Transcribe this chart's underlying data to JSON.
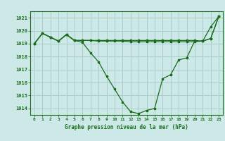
{
  "title": "Graphe pression niveau de la mer (hPa)",
  "bg_color": "#cce9e8",
  "grid_color": "#aacccc",
  "line_color": "#1a6b1a",
  "marker_color": "#1a6b1a",
  "ylim": [
    1013.5,
    1021.5
  ],
  "yticks": [
    1014,
    1015,
    1016,
    1017,
    1018,
    1019,
    1020,
    1021
  ],
  "xlim": [
    -0.5,
    23.5
  ],
  "xticks": [
    0,
    1,
    2,
    3,
    4,
    5,
    6,
    7,
    8,
    9,
    10,
    11,
    12,
    13,
    14,
    15,
    16,
    17,
    18,
    19,
    20,
    21,
    22,
    23
  ],
  "series1_x": [
    0,
    1,
    2,
    3,
    4,
    5,
    6,
    7,
    8,
    9,
    10,
    11,
    12,
    13,
    14,
    15,
    16,
    17,
    18,
    19,
    20,
    21,
    22,
    23
  ],
  "series1": [
    1019.0,
    1019.8,
    1019.5,
    1019.2,
    1019.7,
    1019.25,
    1019.25,
    1019.25,
    1019.25,
    1019.25,
    1019.25,
    1019.25,
    1019.25,
    1019.25,
    1019.25,
    1019.25,
    1019.25,
    1019.25,
    1019.25,
    1019.25,
    1019.25,
    1019.2,
    1019.4,
    1021.1
  ],
  "series2": [
    1019.0,
    1019.8,
    1019.5,
    1019.2,
    1019.7,
    1019.25,
    1019.1,
    1018.3,
    1017.6,
    1016.5,
    1015.5,
    1014.5,
    1013.75,
    1013.6,
    1013.85,
    1014.0,
    1016.3,
    1016.6,
    1017.75,
    1017.9,
    1019.2,
    1019.2,
    1020.3,
    1021.1
  ],
  "series3": [
    1019.0,
    1019.8,
    1019.5,
    1019.2,
    1019.7,
    1019.25,
    1019.25,
    1019.25,
    1019.2,
    1019.2,
    1019.2,
    1019.2,
    1019.15,
    1019.15,
    1019.15,
    1019.15,
    1019.15,
    1019.15,
    1019.15,
    1019.15,
    1019.15,
    1019.2,
    1019.4,
    1021.1
  ]
}
